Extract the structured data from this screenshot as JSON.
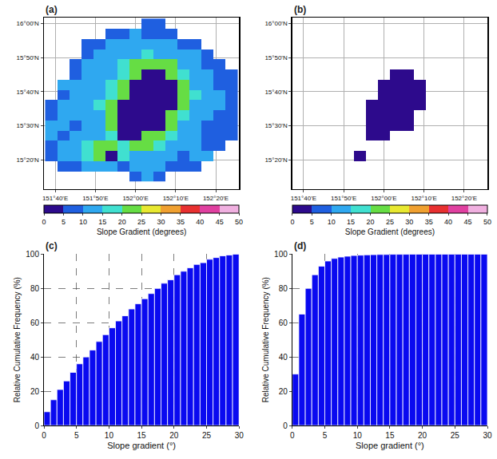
{
  "chart_data": [
    {
      "type": "heatmap",
      "panel": "(a)",
      "x": [
        151.65,
        151.7,
        151.75,
        151.8,
        151.85,
        151.9,
        151.95,
        152,
        152.05,
        152.1,
        152.15,
        152.2,
        152.25,
        152.3,
        152.35,
        152.4
      ],
      "y": [
        15.25,
        15.3,
        15.35,
        15.4,
        15.45,
        15.5,
        15.55,
        15.6,
        15.65,
        15.7,
        15.75,
        15.8,
        15.85,
        15.9,
        15.95,
        16
      ],
      "z": [
        [
          null,
          null,
          null,
          null,
          null,
          null,
          null,
          8,
          10,
          9,
          null,
          null,
          null,
          null,
          null,
          null
        ],
        [
          null,
          6,
          9,
          12,
          10,
          14,
          8,
          10,
          12,
          11,
          9,
          7,
          8,
          null,
          null,
          null
        ],
        [
          8,
          10,
          14,
          18,
          20,
          2,
          18,
          12,
          10,
          14,
          12,
          9,
          10,
          11,
          null,
          null
        ],
        [
          9,
          12,
          10,
          16,
          22,
          20,
          18,
          20,
          22,
          18,
          14,
          10,
          12,
          9,
          8,
          null
        ],
        [
          10,
          8,
          12,
          10,
          14,
          18,
          2,
          1,
          22,
          20,
          16,
          12,
          10,
          8,
          7,
          6
        ],
        [
          12,
          10,
          9,
          11,
          12,
          22,
          1,
          1,
          2,
          2,
          24,
          14,
          10,
          9,
          8,
          7
        ],
        [
          9,
          11,
          12,
          10,
          14,
          24,
          1,
          1,
          1,
          2,
          22,
          16,
          12,
          10,
          9,
          8
        ],
        [
          8,
          10,
          11,
          12,
          16,
          20,
          2,
          1,
          1,
          1,
          2,
          20,
          14,
          11,
          10,
          9
        ],
        [
          null,
          9,
          12,
          11,
          14,
          18,
          22,
          2,
          1,
          1,
          2,
          22,
          15,
          12,
          10,
          8
        ],
        [
          null,
          10,
          11,
          12,
          13,
          16,
          20,
          2,
          1,
          1,
          2,
          24,
          14,
          11,
          9,
          8
        ],
        [
          null,
          null,
          9,
          10,
          12,
          14,
          18,
          22,
          2,
          2,
          24,
          18,
          12,
          10,
          9,
          7
        ],
        [
          null,
          null,
          8,
          10,
          11,
          12,
          16,
          20,
          24,
          22,
          20,
          14,
          10,
          9,
          8,
          null
        ],
        [
          null,
          null,
          null,
          9,
          10,
          11,
          12,
          14,
          16,
          14,
          12,
          11,
          10,
          9,
          null,
          null
        ],
        [
          null,
          null,
          null,
          8,
          9,
          10,
          11,
          10,
          12,
          11,
          10,
          9,
          8,
          null,
          null,
          null
        ],
        [
          null,
          null,
          null,
          null,
          null,
          8,
          9,
          10,
          9,
          8,
          7,
          null,
          null,
          null,
          null,
          null
        ],
        [
          null,
          null,
          null,
          null,
          null,
          null,
          null,
          null,
          7,
          8,
          null,
          null,
          null,
          null,
          null,
          null
        ]
      ],
      "xlim": [
        151.62,
        152.43
      ],
      "ylim": [
        15.19,
        16.03
      ],
      "xticks": [
        {
          "value": 151.6667,
          "label": "151°40'E"
        },
        {
          "value": 151.8333,
          "label": "151°50'E"
        },
        {
          "value": 152,
          "label": "152°00'E"
        },
        {
          "value": 152.1667,
          "label": "152°10'E"
        },
        {
          "value": 152.3333,
          "label": "152°20'E"
        }
      ],
      "yticks": [
        {
          "value": 15.3333,
          "label": "15°20'N"
        },
        {
          "value": 15.5,
          "label": "15°30'N"
        },
        {
          "value": 15.6667,
          "label": "15°40'N"
        },
        {
          "value": 15.8333,
          "label": "15°50'N"
        },
        {
          "value": 16,
          "label": "16°00'N"
        }
      ],
      "grid": true,
      "colorbar": {
        "range": [
          0,
          50
        ],
        "ticks": [
          0,
          5,
          10,
          15,
          20,
          25,
          30,
          35,
          40,
          45,
          50
        ],
        "label": "Slope Gradient (degrees)",
        "colors": [
          "#2d0a8c",
          "#1f5fe0",
          "#2fa8f0",
          "#40e0d0",
          "#66dd44",
          "#e8e830",
          "#f0a030",
          "#e83030",
          "#e040a0",
          "#f0b0e0"
        ]
      }
    },
    {
      "type": "heatmap",
      "panel": "(b)",
      "x": [
        151.65,
        151.7,
        151.75,
        151.8,
        151.85,
        151.9,
        151.95,
        152,
        152.05,
        152.1,
        152.15,
        152.2,
        152.25,
        152.3,
        152.35,
        152.4
      ],
      "y": [
        15.25,
        15.3,
        15.35,
        15.4,
        15.45,
        15.5,
        15.55,
        15.6,
        15.65,
        15.7,
        15.75,
        15.8,
        15.85,
        15.9,
        15.95,
        16
      ],
      "z": [
        [
          null,
          null,
          null,
          null,
          null,
          null,
          null,
          null,
          null,
          null,
          null,
          null,
          null,
          null,
          null,
          null
        ],
        [
          null,
          null,
          null,
          null,
          null,
          null,
          null,
          null,
          null,
          null,
          null,
          null,
          null,
          null,
          null,
          null
        ],
        [
          null,
          null,
          null,
          null,
          null,
          2,
          null,
          null,
          null,
          null,
          null,
          null,
          null,
          null,
          null,
          null
        ],
        [
          null,
          null,
          null,
          null,
          null,
          null,
          null,
          null,
          null,
          null,
          null,
          null,
          null,
          null,
          null,
          null
        ],
        [
          null,
          null,
          null,
          null,
          null,
          null,
          2,
          1,
          null,
          null,
          null,
          null,
          null,
          null,
          null,
          null
        ],
        [
          null,
          null,
          null,
          null,
          null,
          null,
          1,
          1,
          2,
          2,
          null,
          null,
          null,
          null,
          null,
          null
        ],
        [
          null,
          null,
          null,
          null,
          null,
          null,
          1,
          1,
          1,
          2,
          null,
          null,
          null,
          null,
          null,
          null
        ],
        [
          null,
          null,
          null,
          null,
          null,
          null,
          2,
          1,
          1,
          1,
          2,
          null,
          null,
          null,
          null,
          null
        ],
        [
          null,
          null,
          null,
          null,
          null,
          null,
          null,
          2,
          1,
          1,
          2,
          null,
          null,
          null,
          null,
          null
        ],
        [
          null,
          null,
          null,
          null,
          null,
          null,
          null,
          2,
          1,
          1,
          2,
          null,
          null,
          null,
          null,
          null
        ],
        [
          null,
          null,
          null,
          null,
          null,
          null,
          null,
          null,
          2,
          2,
          null,
          null,
          null,
          null,
          null,
          null
        ],
        [
          null,
          null,
          null,
          null,
          null,
          null,
          null,
          null,
          null,
          null,
          null,
          null,
          null,
          null,
          null,
          null
        ],
        [
          null,
          null,
          null,
          null,
          null,
          null,
          null,
          null,
          null,
          null,
          null,
          null,
          null,
          null,
          null,
          null
        ],
        [
          null,
          null,
          null,
          null,
          null,
          null,
          null,
          null,
          null,
          null,
          null,
          null,
          null,
          null,
          null,
          null
        ],
        [
          null,
          null,
          null,
          null,
          null,
          null,
          null,
          null,
          null,
          null,
          null,
          null,
          null,
          null,
          null,
          null
        ],
        [
          null,
          null,
          null,
          null,
          null,
          null,
          null,
          null,
          null,
          null,
          null,
          null,
          null,
          null,
          null,
          null
        ]
      ],
      "xlim": [
        151.62,
        152.43
      ],
      "ylim": [
        15.19,
        16.03
      ],
      "xticks": [
        {
          "value": 151.6667,
          "label": "151°40'E"
        },
        {
          "value": 151.8333,
          "label": "151°50'E"
        },
        {
          "value": 152,
          "label": "152°00'E"
        },
        {
          "value": 152.1667,
          "label": "152°10'E"
        },
        {
          "value": 152.3333,
          "label": "152°20'E"
        }
      ],
      "yticks": [
        {
          "value": 15.3333,
          "label": "15°20'N"
        },
        {
          "value": 15.5,
          "label": "15°30'N"
        },
        {
          "value": 15.6667,
          "label": "15°40'N"
        },
        {
          "value": 15.8333,
          "label": "15°50'N"
        },
        {
          "value": 16,
          "label": "16°00'N"
        }
      ],
      "grid": true,
      "colorbar": {
        "range": [
          0,
          50
        ],
        "ticks": [
          0,
          5,
          10,
          15,
          20,
          25,
          30,
          35,
          40,
          45,
          50
        ],
        "label": "Slope Gradient (degrees)",
        "colors": [
          "#2d0a8c",
          "#1f5fe0",
          "#2fa8f0",
          "#40e0d0",
          "#66dd44",
          "#e8e830",
          "#f0a030",
          "#e83030",
          "#e040a0",
          "#f0b0e0"
        ]
      }
    },
    {
      "type": "histogram",
      "panel": "(c)",
      "bins": [
        0,
        1,
        2,
        3,
        4,
        5,
        6,
        7,
        8,
        9,
        10,
        11,
        12,
        13,
        14,
        15,
        16,
        17,
        18,
        19,
        20,
        21,
        22,
        23,
        24,
        25,
        26,
        27,
        28,
        29,
        30
      ],
      "values": [
        8,
        15,
        21,
        26,
        31,
        36,
        40,
        44,
        49,
        53,
        57,
        61,
        64,
        68,
        71,
        74,
        77,
        80,
        83,
        85,
        88,
        90,
        92,
        94,
        95,
        97,
        98,
        99,
        99.5,
        100
      ],
      "color": "#0a0af0",
      "xlabel": "Slope gradient (°)",
      "ylabel": "Relative Cumulative Frequency (%)",
      "xlim": [
        0,
        30
      ],
      "ylim": [
        0,
        100
      ],
      "xticks": [
        0,
        5,
        10,
        15,
        20,
        25,
        30
      ],
      "yticks": [
        0,
        20,
        40,
        60,
        80,
        100
      ],
      "grid": true
    },
    {
      "type": "histogram",
      "panel": "(d)",
      "bins": [
        0,
        1,
        2,
        3,
        4,
        5,
        6,
        7,
        8,
        9,
        10,
        11,
        12,
        13,
        14,
        15,
        16,
        17,
        18,
        19,
        20,
        21,
        22,
        23,
        24,
        25,
        26,
        27,
        28,
        29,
        30
      ],
      "values": [
        30,
        65,
        80,
        88,
        93,
        96,
        97.5,
        98.3,
        98.8,
        99.2,
        99.4,
        99.6,
        99.7,
        99.8,
        99.8,
        99.9,
        99.9,
        99.9,
        100,
        100,
        100,
        100,
        100,
        100,
        100,
        100,
        100,
        100,
        100,
        100
      ],
      "color": "#0a0af0",
      "xlabel": "Slope gradient (°)",
      "ylabel": "Relative Cumulative Frequency (%)",
      "xlim": [
        0,
        30
      ],
      "ylim": [
        0,
        100
      ],
      "xticks": [
        0,
        5,
        10,
        15,
        20,
        25,
        30
      ],
      "yticks": [
        0,
        20,
        40,
        60,
        80,
        100
      ],
      "grid": true
    }
  ]
}
